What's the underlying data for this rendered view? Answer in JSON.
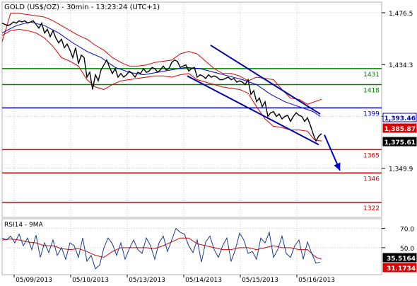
{
  "colors": {
    "background": "#ffffff",
    "frame": "#b0b0b0",
    "grid": "#c8c8c8",
    "price": "#000000",
    "ma": "#0000cc",
    "bollinger": "#dd0000",
    "support_green": "#008000",
    "pivot_blue": "#0000aa",
    "support_red": "#dd0000",
    "channel": "#0000aa",
    "arrow": "#0000cc",
    "rsi": "#1a3a8a",
    "rsi_ma": "#dd0000",
    "badge_black": "#000000",
    "badge_red": "#dd0000",
    "badge_blue": "#0000aa",
    "label_green": "#008000",
    "label_red": "#dd0000",
    "label_blue": "#0000aa"
  },
  "chart_data": [
    {
      "type": "line",
      "title": "GOLD (US$/OZ) - 30min - 13:23:24 (UTC+1)",
      "x_labels": [
        "05/09/2013",
        "05/10/2013",
        "05/13/2013",
        "05/14/2013",
        "05/15/2013",
        "05/16/2013"
      ],
      "y_ticks": [
        {
          "value": 1476.5,
          "label": "1,476.5"
        },
        {
          "value": 1434.3,
          "label": "1,434.3"
        },
        {
          "value": 1392.1,
          "label": ""
        },
        {
          "value": 1349.9,
          "label": "1,349.9"
        }
      ],
      "ylim": [
        1311,
        1484
      ],
      "grid": "horizontal-dotted",
      "price_series": {
        "x": [
          0,
          4,
          8,
          12,
          16,
          20,
          24,
          28,
          32,
          36,
          40,
          44,
          48,
          52,
          56,
          60,
          64,
          68,
          72,
          76,
          80,
          84,
          88,
          92,
          96,
          100,
          104,
          108,
          112,
          116,
          120,
          124,
          128,
          132,
          136,
          140,
          144,
          148,
          152,
          156,
          160,
          164,
          168,
          172,
          176,
          180,
          184,
          188,
          192,
          196,
          200,
          204,
          208,
          212,
          216,
          220,
          224,
          228,
          232,
          236,
          240,
          244,
          248,
          252,
          256,
          260,
          264,
          268,
          272,
          276,
          280,
          284,
          288,
          292,
          296,
          300,
          304,
          308,
          312,
          316,
          320,
          324,
          328,
          332,
          336,
          340,
          344,
          348,
          352,
          356,
          360,
          364,
          368,
          372,
          376,
          380,
          384,
          388,
          392,
          396,
          400,
          404,
          408,
          412,
          416,
          420,
          424,
          428,
          432,
          436,
          440,
          444,
          448,
          452
        ],
        "values": [
          1468,
          1467,
          1466,
          1467,
          1469,
          1468,
          1470,
          1469,
          1470,
          1468,
          1469,
          1470,
          1467,
          1464,
          1468,
          1460,
          1463,
          1457,
          1462,
          1456,
          1452,
          1455,
          1448,
          1451,
          1446,
          1440,
          1448,
          1435,
          1442,
          1440,
          1424,
          1428,
          1414,
          1426,
          1421,
          1430,
          1434,
          1438,
          1432,
          1427,
          1431,
          1424,
          1427,
          1424,
          1426,
          1429,
          1427,
          1424,
          1428,
          1427,
          1431,
          1428,
          1429,
          1432,
          1431,
          1428,
          1430,
          1433,
          1430,
          1431,
          1436,
          1438,
          1437,
          1432,
          1433,
          1434,
          1429,
          1431,
          1432,
          1424,
          1426,
          1425,
          1423,
          1426,
          1424,
          1425,
          1424,
          1422,
          1422,
          1423,
          1424,
          1422,
          1423,
          1420,
          1421,
          1420,
          1418,
          1422,
          1410,
          1413,
          1404,
          1407,
          1400,
          1404,
          1392,
          1395,
          1396,
          1392,
          1394,
          1390,
          1392,
          1393,
          1388,
          1392,
          1395,
          1393,
          1392,
          1388,
          1391,
          1385,
          1378,
          1372,
          1376,
          1378
        ]
      },
      "ma_series": {
        "x": [
          0,
          20,
          40,
          60,
          80,
          100,
          120,
          140,
          160,
          180,
          200,
          220,
          240,
          260,
          280,
          300,
          320,
          340,
          360,
          380,
          400,
          420,
          440,
          450
        ],
        "values": [
          1460,
          1466,
          1469,
          1466,
          1460,
          1452,
          1445,
          1440,
          1432,
          1428,
          1426,
          1428,
          1430,
          1432,
          1431,
          1428,
          1425,
          1422,
          1418,
          1410,
          1404,
          1400,
          1396,
          1392
        ]
      },
      "bollinger_upper": {
        "x": [
          0,
          12,
          24,
          36,
          48,
          60,
          72,
          84,
          96,
          108,
          120,
          132,
          144,
          156,
          168,
          180,
          192,
          204,
          216,
          228,
          240,
          252,
          264,
          276,
          288,
          300,
          312,
          324,
          336,
          348,
          360,
          372,
          384,
          396,
          408,
          420,
          432,
          442,
          452
        ],
        "values": [
          1453,
          1476,
          1476,
          1475,
          1474,
          1473,
          1470,
          1466,
          1462,
          1458,
          1455,
          1450,
          1446,
          1440,
          1436,
          1433,
          1433,
          1434,
          1436,
          1437,
          1438,
          1443,
          1445,
          1443,
          1437,
          1431,
          1427,
          1427,
          1425,
          1421,
          1424,
          1423,
          1422,
          1414,
          1407,
          1406,
          1402,
          1404,
          1406
        ]
      },
      "bollinger_lower": {
        "x": [
          0,
          12,
          24,
          36,
          48,
          60,
          72,
          84,
          96,
          108,
          120,
          132,
          144,
          156,
          168,
          180,
          192,
          204,
          216,
          228,
          240,
          252,
          264,
          276,
          288,
          300,
          312,
          324,
          336,
          348,
          360,
          372,
          384,
          396,
          408,
          420,
          432,
          442,
          452
        ],
        "values": [
          1458,
          1462,
          1463,
          1462,
          1460,
          1456,
          1449,
          1440,
          1437,
          1433,
          1422,
          1416,
          1414,
          1418,
          1421,
          1422,
          1423,
          1424,
          1425,
          1425,
          1424,
          1426,
          1427,
          1422,
          1420,
          1418,
          1416,
          1415,
          1414,
          1411,
          1400,
          1390,
          1384,
          1383,
          1381,
          1381,
          1380,
          1373,
          1372
        ]
      },
      "horizontal_levels": [
        {
          "value": 1431,
          "label": "1431",
          "color": "#008000"
        },
        {
          "value": 1418,
          "label": "1418",
          "color": "#008000"
        },
        {
          "value": 1399,
          "label": "1399",
          "color": "#0000aa"
        },
        {
          "value": 1365,
          "label": "1365",
          "color": "#dd0000"
        },
        {
          "value": 1346,
          "label": "1346",
          "color": "#dd0000"
        },
        {
          "value": 1322,
          "label": "1322",
          "color": "#dd0000"
        }
      ],
      "channel_lines": [
        {
          "x1": 262,
          "y1": 1425,
          "x2": 448,
          "y2": 1369
        },
        {
          "x1": 295,
          "y1": 1450,
          "x2": 450,
          "y2": 1394
        }
      ],
      "forecast_arrow": {
        "x1": 456,
        "y1": 1377,
        "x2": 478,
        "y2": 1348
      },
      "price_badges": [
        {
          "label": "1,393.46",
          "value": 1393.46,
          "style": "blue"
        },
        {
          "label": "1,385.87",
          "value": 1385.87,
          "style": "red"
        },
        {
          "label": "1,375.61",
          "value": 1375.61,
          "style": "black"
        }
      ]
    },
    {
      "type": "line",
      "title": "RSI14 - 9MA",
      "y_ticks": [
        {
          "value": 70,
          "label": "70.0"
        },
        {
          "value": 50,
          "label": "50.0"
        }
      ],
      "ylim": [
        22,
        80
      ],
      "rsi_series": {
        "x": [
          0,
          6,
          12,
          18,
          24,
          30,
          36,
          42,
          48,
          54,
          60,
          66,
          72,
          78,
          84,
          90,
          96,
          102,
          108,
          114,
          120,
          126,
          132,
          138,
          144,
          150,
          156,
          162,
          168,
          174,
          180,
          186,
          192,
          198,
          204,
          210,
          216,
          222,
          228,
          234,
          240,
          246,
          252,
          258,
          264,
          270,
          276,
          282,
          288,
          294,
          300,
          306,
          312,
          318,
          324,
          330,
          336,
          342,
          348,
          354,
          360,
          366,
          372,
          378,
          384,
          390,
          396,
          402,
          408,
          414,
          420,
          426,
          432,
          438,
          444,
          450
        ],
        "values": [
          60,
          58,
          62,
          55,
          64,
          52,
          60,
          48,
          63,
          40,
          55,
          45,
          58,
          42,
          50,
          38,
          55,
          52,
          40,
          60,
          36,
          42,
          28,
          32,
          50,
          60,
          54,
          42,
          55,
          38,
          49,
          58,
          48,
          44,
          60,
          52,
          38,
          55,
          62,
          46,
          58,
          70,
          66,
          64,
          52,
          45,
          58,
          35,
          56,
          62,
          48,
          40,
          52,
          60,
          36,
          48,
          65,
          58,
          44,
          46,
          38,
          60,
          55,
          66,
          40,
          48,
          62,
          44,
          40,
          52,
          58,
          38,
          56,
          44,
          34,
          35
        ]
      },
      "rsi_ma_series": {
        "x": [
          0,
          12,
          24,
          36,
          48,
          60,
          72,
          84,
          96,
          108,
          120,
          132,
          144,
          156,
          168,
          180,
          192,
          204,
          216,
          228,
          240,
          252,
          264,
          276,
          288,
          300,
          312,
          324,
          336,
          348,
          360,
          372,
          384,
          396,
          408,
          420,
          432,
          444,
          452
        ],
        "values": [
          58,
          59,
          58,
          56,
          55,
          52,
          52,
          49,
          48,
          49,
          46,
          42,
          40,
          46,
          50,
          50,
          50,
          50,
          49,
          52,
          56,
          60,
          60,
          54,
          52,
          50,
          48,
          48,
          50,
          50,
          48,
          50,
          52,
          50,
          50,
          48,
          48,
          40,
          38
        ]
      },
      "badges": [
        {
          "label": "35.5164",
          "value": 35.5164,
          "style": "black"
        },
        {
          "label": "31.1734",
          "value": 31.1734,
          "style": "red"
        }
      ]
    }
  ]
}
